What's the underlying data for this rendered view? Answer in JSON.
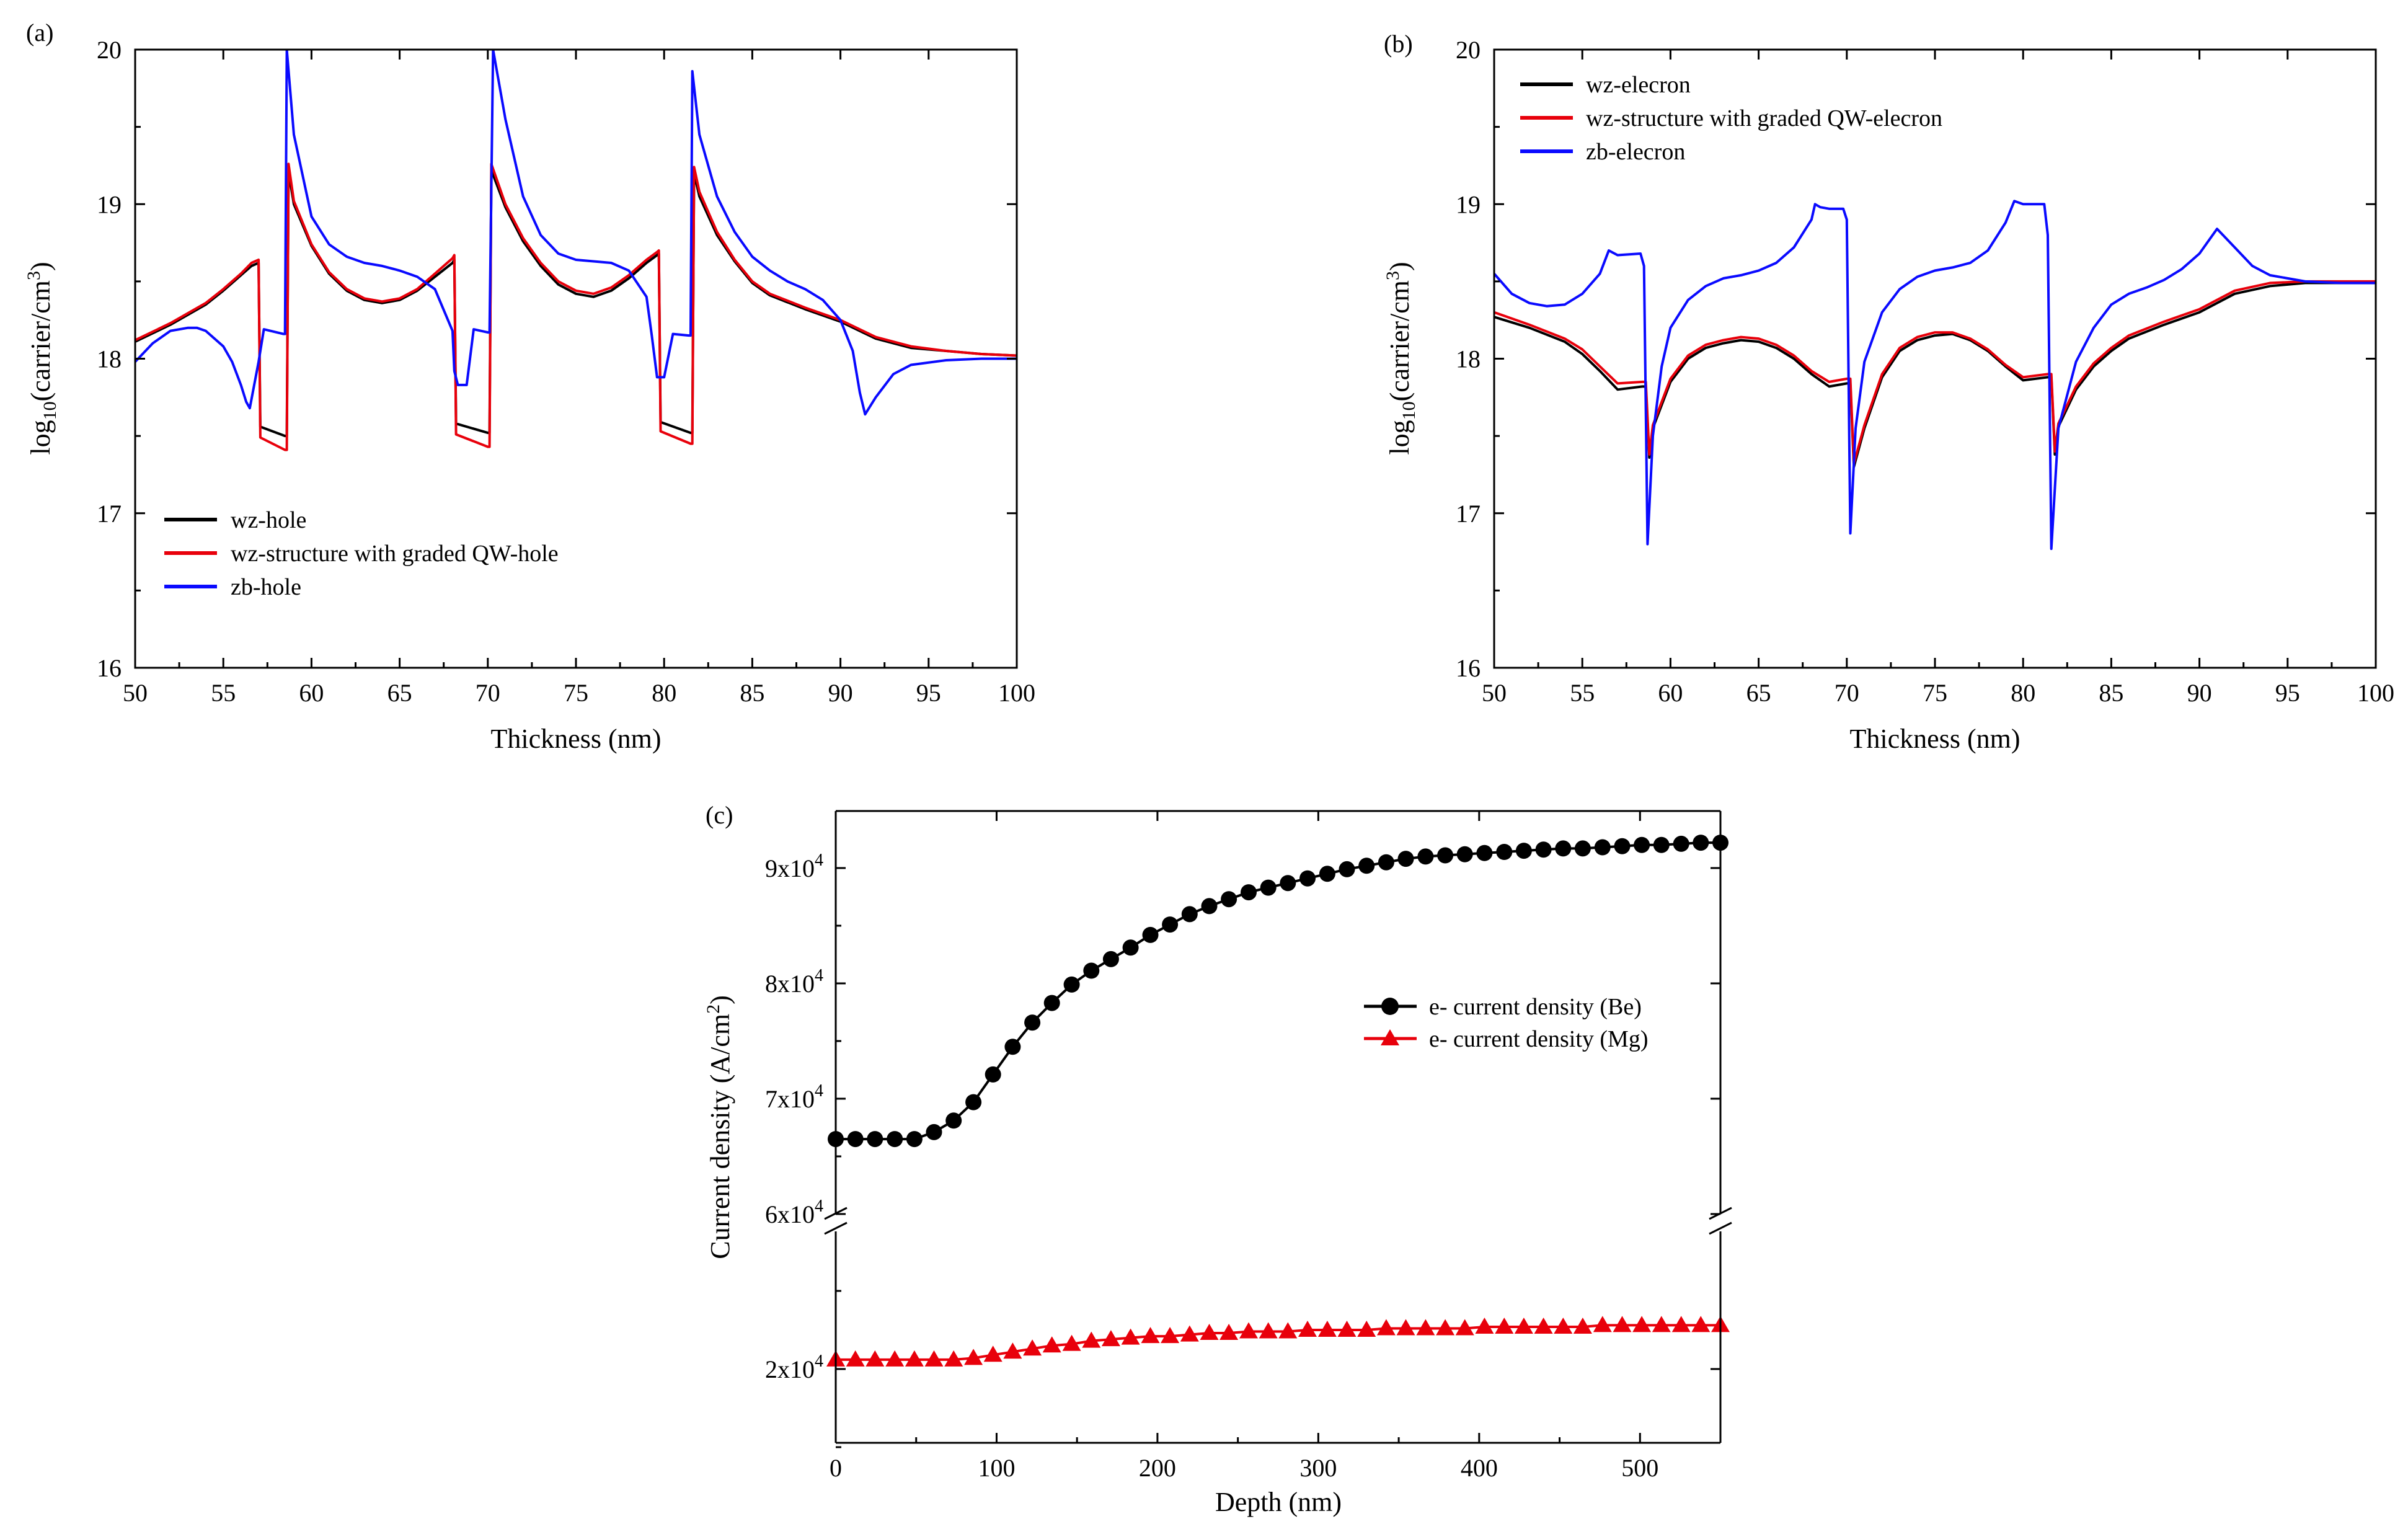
{
  "figure": {
    "panel_labels": [
      "(a)",
      "(b)",
      "(c)"
    ]
  },
  "colors": {
    "black": "#000000",
    "red": "#e8000b",
    "blue": "#0a0aff"
  },
  "chart_data": [
    {
      "id": "a",
      "type": "line",
      "panel_label": "(a)",
      "xlabel": "Thickness (nm)",
      "ylabel_base": "log",
      "ylabel_sub": "10",
      "ylabel_mid": "(carrier/cm",
      "ylabel_sup": "3",
      "ylabel_end": ")",
      "xlim": [
        50,
        100
      ],
      "ylim": [
        16,
        20
      ],
      "xticks": [
        50,
        55,
        60,
        65,
        70,
        75,
        80,
        85,
        90,
        95,
        100
      ],
      "yticks": [
        16,
        17,
        18,
        19,
        20
      ],
      "legend": [
        "wz-hole",
        "wz-structure with graded QW-hole",
        "zb-hole"
      ],
      "legend_position": "lower-left",
      "series": [
        {
          "name": "wz-hole",
          "color": "#000000",
          "x": [
            50,
            52,
            54,
            55,
            56,
            56.6,
            57.0,
            57.1,
            58.5,
            58.6,
            58.7,
            59,
            60,
            61,
            62,
            63,
            64,
            65,
            66,
            67,
            68,
            68.1,
            68.2,
            70,
            70.1,
            70.2,
            71,
            72,
            73,
            74,
            75,
            76,
            77,
            78,
            79,
            79.6,
            79.7,
            79.8,
            81.5,
            81.6,
            81.7,
            82,
            83,
            84,
            85,
            86,
            88,
            90,
            92,
            94,
            96,
            98,
            100
          ],
          "y": [
            18.11,
            18.22,
            18.35,
            18.44,
            18.54,
            18.6,
            18.62,
            17.56,
            17.5,
            17.5,
            19.21,
            19.0,
            18.73,
            18.55,
            18.44,
            18.38,
            18.36,
            18.38,
            18.44,
            18.53,
            18.62,
            18.64,
            17.58,
            17.52,
            17.52,
            19.22,
            18.98,
            18.76,
            18.6,
            18.48,
            18.42,
            18.4,
            18.44,
            18.52,
            18.62,
            18.67,
            18.68,
            17.59,
            17.52,
            17.52,
            19.2,
            19.05,
            18.8,
            18.63,
            18.49,
            18.41,
            18.32,
            18.24,
            18.13,
            18.07,
            18.05,
            18.03,
            18.02
          ]
        },
        {
          "name": "wz-structure with graded QW-hole",
          "color": "#e8000b",
          "x": [
            50,
            52,
            54,
            55,
            56,
            56.6,
            57.0,
            57.1,
            58.5,
            58.6,
            58.7,
            59,
            60,
            61,
            62,
            63,
            64,
            65,
            66,
            67,
            68,
            68.1,
            68.2,
            70,
            70.1,
            70.2,
            71,
            72,
            73,
            74,
            75,
            76,
            77,
            78,
            79,
            79.6,
            79.7,
            79.8,
            81.5,
            81.6,
            81.7,
            82,
            83,
            84,
            85,
            86,
            88,
            90,
            92,
            94,
            96,
            98,
            100
          ],
          "y": [
            18.12,
            18.23,
            18.36,
            18.45,
            18.55,
            18.62,
            18.64,
            17.49,
            17.41,
            17.41,
            19.26,
            19.02,
            18.74,
            18.56,
            18.45,
            18.39,
            18.37,
            18.39,
            18.45,
            18.55,
            18.65,
            18.67,
            17.51,
            17.43,
            17.43,
            19.26,
            19.0,
            18.78,
            18.62,
            18.5,
            18.44,
            18.42,
            18.46,
            18.54,
            18.64,
            18.69,
            18.7,
            17.53,
            17.45,
            17.45,
            19.24,
            19.08,
            18.82,
            18.64,
            18.5,
            18.42,
            18.33,
            18.25,
            18.14,
            18.08,
            18.05,
            18.03,
            18.02
          ]
        },
        {
          "name": "zb-hole",
          "color": "#0a0aff",
          "x": [
            50,
            51,
            52,
            53,
            53.5,
            54,
            55,
            55.5,
            56,
            56.3,
            56.5,
            57,
            57.3,
            58.4,
            58.5,
            58.6,
            59,
            60,
            61,
            62,
            63,
            64,
            65,
            66,
            67,
            68,
            68.1,
            68.3,
            68.8,
            69.2,
            70.0,
            70.1,
            70.3,
            71,
            72,
            73,
            74,
            75,
            76,
            77,
            78,
            79,
            79.3,
            79.6,
            80.0,
            80.5,
            81.4,
            81.5,
            81.6,
            82,
            83,
            84,
            85,
            86,
            87,
            88,
            89,
            90,
            90.7,
            91.1,
            91.4,
            92,
            93,
            94,
            96,
            98,
            100
          ],
          "y": [
            17.98,
            18.1,
            18.18,
            18.2,
            18.2,
            18.18,
            18.08,
            17.98,
            17.83,
            17.72,
            17.68,
            17.98,
            18.19,
            18.16,
            18.16,
            20.0,
            19.45,
            18.92,
            18.74,
            18.66,
            18.62,
            18.6,
            18.57,
            18.53,
            18.45,
            18.18,
            17.92,
            17.83,
            17.83,
            18.19,
            18.17,
            18.17,
            20.0,
            19.55,
            19.05,
            18.8,
            18.68,
            18.64,
            18.63,
            18.62,
            18.57,
            18.4,
            18.15,
            17.88,
            17.88,
            18.16,
            18.15,
            18.15,
            19.86,
            19.45,
            19.05,
            18.82,
            18.66,
            18.57,
            18.5,
            18.45,
            18.38,
            18.25,
            18.05,
            17.78,
            17.64,
            17.75,
            17.9,
            17.96,
            17.99,
            18.0,
            18.0
          ]
        }
      ]
    },
    {
      "id": "b",
      "type": "line",
      "panel_label": "(b)",
      "xlabel": "Thickness (nm)",
      "ylabel_base": "log",
      "ylabel_sub": "10",
      "ylabel_mid": "(carrier/cm",
      "ylabel_sup": "3",
      "ylabel_end": ")",
      "xlim": [
        50,
        100
      ],
      "ylim": [
        16,
        20
      ],
      "xticks": [
        50,
        55,
        60,
        65,
        70,
        75,
        80,
        85,
        90,
        95,
        100
      ],
      "yticks": [
        16,
        17,
        18,
        19,
        20
      ],
      "legend": [
        "wz-elecron",
        "wz-structure with graded QW-elecron",
        "zb-elecron"
      ],
      "legend_position": "top-left",
      "series": [
        {
          "name": "wz-elecron",
          "color": "#000000",
          "x": [
            50,
            52,
            54,
            55,
            56,
            57,
            58.4,
            58.6,
            58.8,
            59,
            60,
            61,
            62,
            63,
            64,
            65,
            66,
            67,
            68,
            69,
            70,
            70.2,
            70.4,
            71,
            72,
            73,
            74,
            75,
            76,
            77,
            78,
            79,
            80,
            81.4,
            81.6,
            81.8,
            82,
            83,
            84,
            85,
            86,
            88,
            90,
            92,
            94,
            96,
            98,
            100
          ],
          "y": [
            18.27,
            18.2,
            18.11,
            18.03,
            17.92,
            17.8,
            17.82,
            17.82,
            17.36,
            17.55,
            17.85,
            18.0,
            18.07,
            18.1,
            18.12,
            18.11,
            18.07,
            18.0,
            17.9,
            17.82,
            17.84,
            17.84,
            17.3,
            17.55,
            17.88,
            18.05,
            18.12,
            18.15,
            18.16,
            18.12,
            18.05,
            17.95,
            17.86,
            17.88,
            17.88,
            17.38,
            17.56,
            17.8,
            17.95,
            18.05,
            18.13,
            18.22,
            18.3,
            18.42,
            18.47,
            18.49,
            18.49,
            18.49
          ]
        },
        {
          "name": "wz-structure with graded QW-elecron",
          "color": "#e8000b",
          "x": [
            50,
            52,
            54,
            55,
            56,
            57,
            58.4,
            58.6,
            58.8,
            59,
            60,
            61,
            62,
            63,
            64,
            65,
            66,
            67,
            68,
            69,
            70,
            70.2,
            70.4,
            71,
            72,
            73,
            74,
            75,
            76,
            77,
            78,
            79,
            80,
            81.4,
            81.6,
            81.8,
            82,
            83,
            84,
            85,
            86,
            88,
            90,
            92,
            94,
            96,
            98,
            100
          ],
          "y": [
            18.3,
            18.22,
            18.13,
            18.06,
            17.95,
            17.84,
            17.85,
            17.85,
            17.38,
            17.57,
            17.87,
            18.02,
            18.09,
            18.12,
            18.14,
            18.13,
            18.09,
            18.02,
            17.92,
            17.85,
            17.87,
            17.87,
            17.32,
            17.57,
            17.9,
            18.07,
            18.14,
            18.17,
            18.17,
            18.13,
            18.06,
            17.96,
            17.88,
            17.9,
            17.9,
            17.4,
            17.58,
            17.82,
            17.97,
            18.07,
            18.15,
            18.24,
            18.32,
            18.44,
            18.49,
            18.5,
            18.5,
            18.5
          ]
        },
        {
          "name": "zb-elecron",
          "color": "#0a0aff",
          "x": [
            50,
            51,
            52,
            53,
            54,
            55,
            56,
            56.5,
            57,
            58.3,
            58.5,
            58.7,
            59,
            59.5,
            60,
            61,
            62,
            63,
            64,
            65,
            66,
            67,
            68,
            68.2,
            68.5,
            69,
            69.8,
            70.0,
            70.2,
            70.5,
            71,
            72,
            73,
            74,
            75,
            76,
            77,
            78,
            79,
            79.5,
            80,
            81.2,
            81.4,
            81.6,
            82,
            83,
            84,
            85,
            86,
            87,
            88,
            89,
            90,
            91,
            92,
            93,
            94,
            96,
            98,
            100
          ],
          "y": [
            18.55,
            18.42,
            18.36,
            18.34,
            18.35,
            18.42,
            18.55,
            18.7,
            18.67,
            18.68,
            18.6,
            16.8,
            17.5,
            17.95,
            18.2,
            18.38,
            18.47,
            18.52,
            18.54,
            18.57,
            18.62,
            18.72,
            18.9,
            19.0,
            18.98,
            18.97,
            18.97,
            18.9,
            16.87,
            17.55,
            17.98,
            18.3,
            18.45,
            18.53,
            18.57,
            18.59,
            18.62,
            18.7,
            18.88,
            19.02,
            19.0,
            19.0,
            18.8,
            16.77,
            17.55,
            17.98,
            18.2,
            18.35,
            18.42,
            18.46,
            18.51,
            18.58,
            18.68,
            18.84,
            18.72,
            18.6,
            18.54,
            18.5,
            18.49,
            18.49
          ]
        }
      ]
    },
    {
      "id": "c",
      "type": "scatter",
      "panel_label": "(c)",
      "xlabel": "Depth (nm)",
      "ylabel_base": "Current density (A/cm",
      "ylabel_sup": "2",
      "ylabel_end": ")",
      "xlim": [
        0,
        550
      ],
      "ylim_lower": [
        10000,
        30000
      ],
      "ylim_upper": [
        60000,
        95000
      ],
      "xticks": [
        0,
        100,
        200,
        300,
        400,
        500
      ],
      "ytick_labels": [
        {
          "value": 20000,
          "mant": "2x10",
          "exp": "4"
        },
        {
          "value": 60000,
          "mant": "6x10",
          "exp": "4"
        },
        {
          "value": 70000,
          "mant": "7x10",
          "exp": "4"
        },
        {
          "value": 80000,
          "mant": "8x10",
          "exp": "4"
        },
        {
          "value": 90000,
          "mant": "9x10",
          "exp": "4"
        }
      ],
      "axis_break": "between 2x10^4 and 6x10^4",
      "legend": [
        "e- current density (Be)",
        "e- current density (Mg)"
      ],
      "legend_position": "right-middle",
      "series": [
        {
          "name": "e- current density (Be)",
          "color": "#000000",
          "marker": "circle",
          "x": [
            0,
            12.2,
            24.4,
            36.7,
            48.9,
            61.1,
            73.3,
            85.6,
            97.8,
            110,
            122.2,
            134.4,
            146.7,
            158.9,
            171.1,
            183.3,
            195.6,
            207.8,
            220,
            232.2,
            244.4,
            256.7,
            268.9,
            281.1,
            293.3,
            305.6,
            317.8,
            330,
            342.2,
            354.4,
            366.7,
            378.9,
            391.1,
            403.3,
            415.6,
            427.8,
            440,
            452.2,
            464.4,
            476.7,
            488.9,
            501.1,
            513.3,
            525.6,
            537.8,
            550
          ],
          "y": [
            66500,
            66500,
            66500,
            66500,
            66500,
            67100,
            68100,
            69700,
            72100,
            74500,
            76600,
            78300,
            79900,
            81100,
            82100,
            83100,
            84200,
            85100,
            86000,
            86700,
            87300,
            87900,
            88300,
            88700,
            89100,
            89500,
            89900,
            90200,
            90500,
            90800,
            91000,
            91100,
            91200,
            91300,
            91400,
            91500,
            91600,
            91700,
            91700,
            91800,
            91900,
            92000,
            92000,
            92100,
            92200,
            92200
          ]
        },
        {
          "name": "e- current density (Mg)",
          "color": "#e8000b",
          "marker": "triangle",
          "x": [
            0,
            12.2,
            24.4,
            36.7,
            48.9,
            61.1,
            73.3,
            85.6,
            97.8,
            110,
            122.2,
            134.4,
            146.7,
            158.9,
            171.1,
            183.3,
            195.6,
            207.8,
            220,
            232.2,
            244.4,
            256.7,
            268.9,
            281.1,
            293.3,
            305.6,
            317.8,
            330,
            342.2,
            354.4,
            366.7,
            378.9,
            391.1,
            403.3,
            415.6,
            427.8,
            440,
            452.2,
            464.4,
            476.7,
            488.9,
            501.1,
            513.3,
            525.6,
            537.8,
            550
          ],
          "y": [
            20600,
            20600,
            20600,
            20600,
            20600,
            20600,
            20600,
            20700,
            20900,
            21100,
            21300,
            21500,
            21600,
            21800,
            21900,
            22000,
            22100,
            22100,
            22200,
            22300,
            22300,
            22400,
            22400,
            22400,
            22500,
            22500,
            22500,
            22500,
            22600,
            22600,
            22600,
            22600,
            22600,
            22700,
            22700,
            22700,
            22700,
            22700,
            22700,
            22800,
            22800,
            22800,
            22800,
            22800,
            22800,
            22800
          ]
        }
      ]
    }
  ]
}
